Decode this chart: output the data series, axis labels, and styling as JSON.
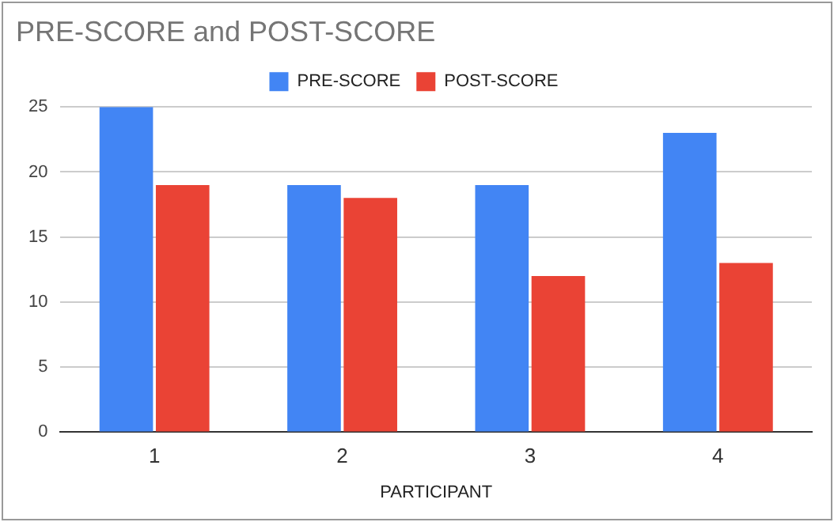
{
  "chart_data": {
    "type": "bar",
    "title": "PRE-SCORE and POST-SCORE",
    "xlabel": "PARTICIPANT",
    "categories": [
      "1",
      "2",
      "3",
      "4"
    ],
    "series": [
      {
        "name": "PRE-SCORE",
        "color": "#4285f4",
        "values": [
          25,
          19,
          19,
          23
        ]
      },
      {
        "name": "POST-SCORE",
        "color": "#ea4335",
        "values": [
          19,
          18,
          12,
          13
        ]
      }
    ],
    "ylim": [
      0,
      25
    ],
    "yticks": [
      0,
      5,
      10,
      15,
      20,
      25
    ],
    "grid": "y",
    "legend": "top"
  }
}
